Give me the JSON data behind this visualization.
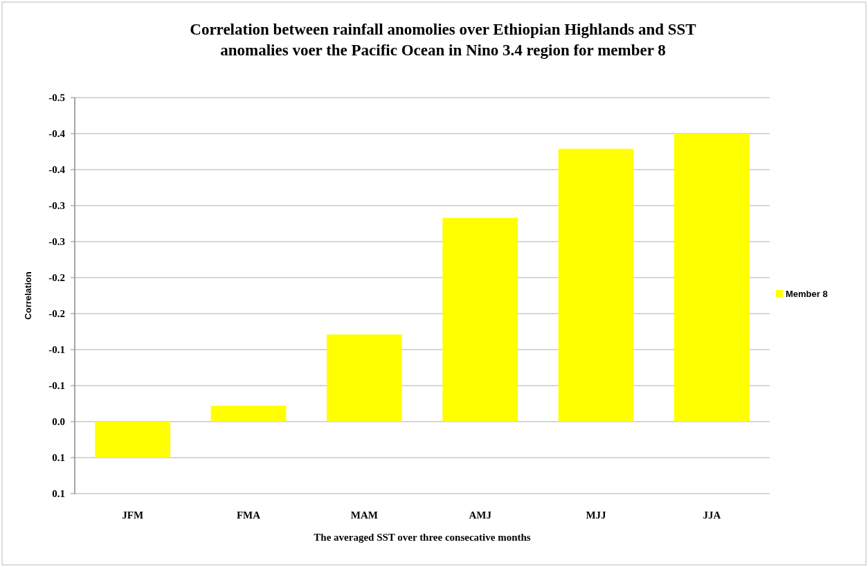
{
  "chart_data": {
    "type": "bar",
    "title": "Correlation between rainfall anomolies over Ethiopian Highlands and SST\nanomalies voer the Pacific Ocean in Nino 3.4 region for member 8",
    "xlabel": "The averaged SST over three consecative months",
    "ylabel": "Correlation",
    "categories": [
      "JFM",
      "FMA",
      "MAM",
      "AMJ",
      "MJJ",
      "JJA"
    ],
    "series": [
      {
        "name": "Member 8",
        "color": "#ffff00",
        "values": [
          0.05,
          -0.022,
          -0.121,
          -0.283,
          -0.379,
          -0.4
        ]
      }
    ],
    "ylim": [
      0.1,
      -0.45
    ],
    "yticks": [
      {
        "value": -0.45,
        "label": "-0.5"
      },
      {
        "value": -0.4,
        "label": "-0.4"
      },
      {
        "value": -0.35,
        "label": "-0.4"
      },
      {
        "value": -0.3,
        "label": "-0.3"
      },
      {
        "value": -0.25,
        "label": "-0.3"
      },
      {
        "value": -0.2,
        "label": "-0.2"
      },
      {
        "value": -0.15,
        "label": "-0.2"
      },
      {
        "value": -0.1,
        "label": "-0.1"
      },
      {
        "value": -0.05,
        "label": "-0.1"
      },
      {
        "value": 0,
        "label": "0.0"
      },
      {
        "value": 0.05,
        "label": "0.1"
      },
      {
        "value": 0.1,
        "label": "0.1"
      }
    ],
    "grid": "y",
    "legend": "right"
  }
}
